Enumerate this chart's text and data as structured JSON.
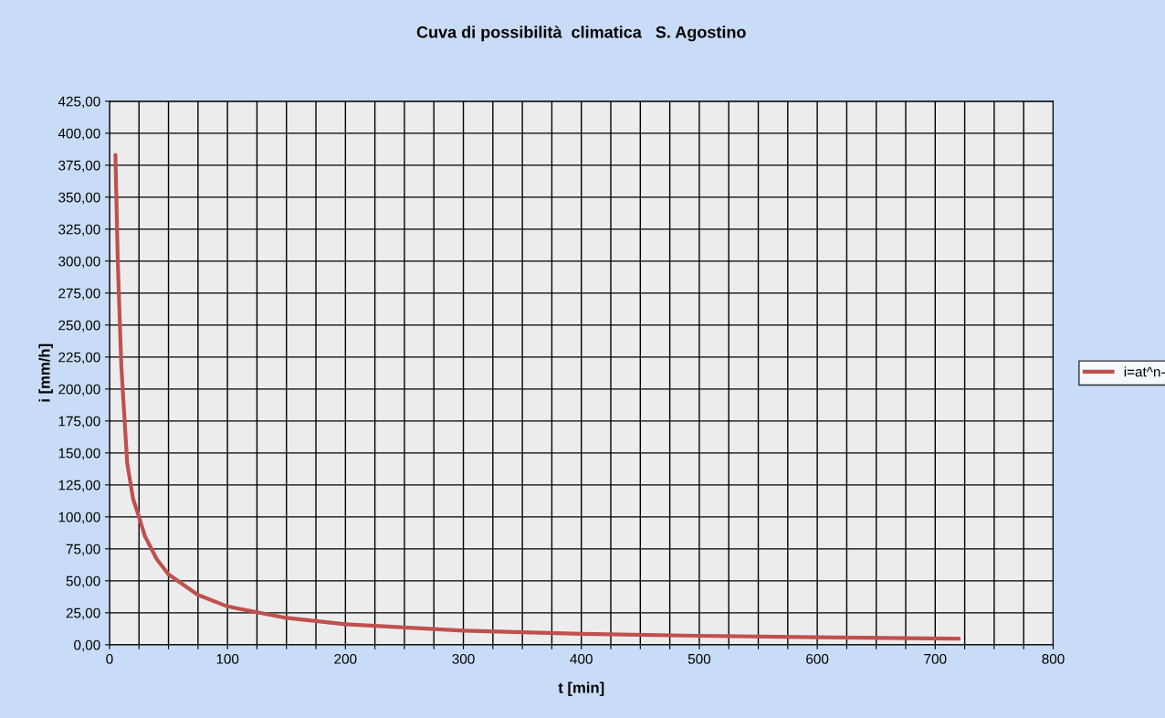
{
  "chart_data": {
    "type": "line",
    "title": "Cuva di possibilità  climatica   S. Agostino",
    "xlabel": "t [min]",
    "ylabel": "i [mm/h]",
    "series": [
      {
        "name": "i=at^n-",
        "color": "#c0504d",
        "x": [
          5,
          7,
          10,
          15,
          20,
          25,
          30,
          40,
          50,
          75,
          100,
          150,
          200,
          300,
          400,
          500,
          600,
          720
        ],
        "values": [
          383,
          300,
          218,
          142,
          114,
          100,
          85,
          67,
          55,
          39,
          30,
          21,
          16,
          11,
          8.5,
          7,
          5.8,
          4.8
        ]
      }
    ],
    "xlim": [
      0,
      800
    ],
    "xticks": [
      0,
      {
        "value": 25,
        "label": null
      },
      {
        "value": 50,
        "label": null
      },
      {
        "value": 75,
        "label": null
      },
      100,
      {
        "value": 125,
        "label": null
      },
      {
        "value": 150,
        "label": null
      },
      {
        "value": 175,
        "label": null
      },
      200,
      {
        "value": 225,
        "label": null
      },
      {
        "value": 250,
        "label": null
      },
      {
        "value": 275,
        "label": null
      },
      300,
      {
        "value": 325,
        "label": null
      },
      {
        "value": 350,
        "label": null
      },
      {
        "value": 375,
        "label": null
      },
      400,
      {
        "value": 425,
        "label": null
      },
      {
        "value": 450,
        "label": null
      },
      {
        "value": 475,
        "label": null
      },
      500,
      {
        "value": 525,
        "label": null
      },
      {
        "value": 550,
        "label": null
      },
      {
        "value": 575,
        "label": null
      },
      600,
      {
        "value": 625,
        "label": null
      },
      {
        "value": 650,
        "label": null
      },
      {
        "value": 675,
        "label": null
      },
      700,
      {
        "value": 725,
        "label": null
      },
      {
        "value": 750,
        "label": null
      },
      {
        "value": 775,
        "label": null
      },
      800
    ],
    "ylim": [
      0,
      425
    ],
    "yticks": [
      {
        "value": 0,
        "label": "0,00"
      },
      {
        "value": 25,
        "label": "25,00"
      },
      {
        "value": 50,
        "label": "50,00"
      },
      {
        "value": 75,
        "label": "75,00"
      },
      {
        "value": 100,
        "label": "100,00"
      },
      {
        "value": 125,
        "label": "125,00"
      },
      {
        "value": 150,
        "label": "150,00"
      },
      {
        "value": 175,
        "label": "175,00"
      },
      {
        "value": 200,
        "label": "200,00"
      },
      {
        "value": 225,
        "label": "225,00"
      },
      {
        "value": 250,
        "label": "250,00"
      },
      {
        "value": 275,
        "label": "275,00"
      },
      {
        "value": 300,
        "label": "300,00"
      },
      {
        "value": 325,
        "label": "325,00"
      },
      {
        "value": 350,
        "label": "350,00"
      },
      {
        "value": 375,
        "label": "375,00"
      },
      {
        "value": 400,
        "label": "400,00"
      },
      {
        "value": 425,
        "label": "425,00"
      }
    ],
    "grid": true,
    "legend": "right",
    "line_style": "solid",
    "marker": "none"
  }
}
